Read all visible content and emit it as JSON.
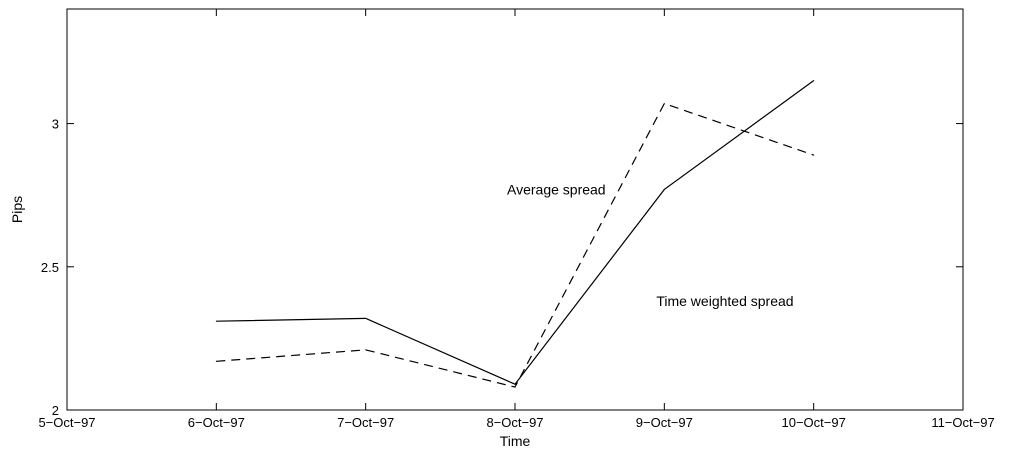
{
  "chart_data": {
    "type": "line",
    "x": [
      "5-Oct-97",
      "6-Oct-97",
      "7-Oct-97",
      "8-Oct-97",
      "9-Oct-97",
      "10-Oct-97",
      "11-Oct-97"
    ],
    "xtick_labels": [
      "5−Oct−97",
      "6−Oct−97",
      "7−Oct−97",
      "8−Oct−97",
      "9−Oct−97",
      "10−Oct−97",
      "11−Oct−97"
    ],
    "series": [
      {
        "style": "solid",
        "x": [
          "6-Oct-97",
          "7-Oct-97",
          "8-Oct-97",
          "9-Oct-97",
          "10-Oct-97"
        ],
        "values": [
          2.31,
          2.32,
          2.09,
          2.77,
          3.15
        ]
      },
      {
        "style": "dashed",
        "x": [
          "6-Oct-97",
          "7-Oct-97",
          "8-Oct-97",
          "9-Oct-97",
          "10-Oct-97"
        ],
        "values": [
          2.17,
          2.21,
          2.08,
          3.07,
          2.89
        ]
      }
    ],
    "annotations": [
      {
        "text": "Average spread",
        "x": "8-Oct-97",
        "y": 2.77
      },
      {
        "text": "Time weighted spread",
        "x": "9-Oct-97",
        "y": 2.38
      }
    ],
    "title": "",
    "xlabel": "Time",
    "ylabel": "Pips",
    "ylim": [
      2,
      3.4
    ],
    "yticks": [
      2,
      2.5,
      3
    ],
    "ytick_labels": [
      "2",
      "2.5",
      "3"
    ],
    "grid": false,
    "colors": {
      "line": "#000000",
      "axes": "#000000",
      "background": "#ffffff"
    }
  }
}
